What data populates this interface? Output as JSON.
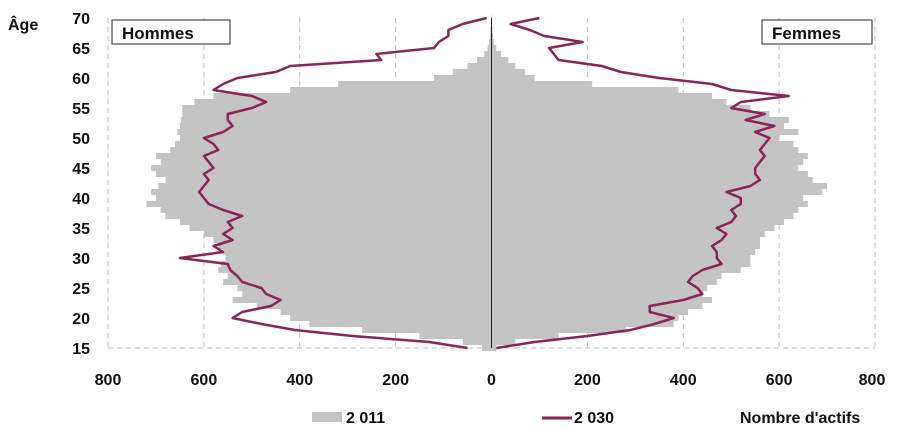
{
  "chart_data": {
    "type": "bar",
    "orientation": "horizontal",
    "subtype": "population-pyramid",
    "ylabel": "Âge",
    "xlabel": "Nombre d'actifs",
    "left_label": "Hommes",
    "right_label": "Femmes",
    "xlim": [
      -800,
      800
    ],
    "ylim": [
      15,
      70
    ],
    "x_ticks": [
      -800,
      -600,
      -400,
      -200,
      0,
      200,
      400,
      600,
      800
    ],
    "x_tick_labels": [
      "800",
      "600",
      "400",
      "200",
      "0",
      "200",
      "400",
      "600",
      "800"
    ],
    "y_ticks": [
      15,
      20,
      25,
      30,
      35,
      40,
      45,
      50,
      55,
      60,
      65,
      70
    ],
    "y_tick_labels": [
      "15",
      "20",
      "25",
      "30",
      "35",
      "40",
      "45",
      "50",
      "55",
      "60",
      "65",
      "70"
    ],
    "grid": "dashed vertical",
    "legend_position": "bottom",
    "ages": [
      15,
      16,
      17,
      18,
      19,
      20,
      21,
      22,
      23,
      24,
      25,
      26,
      27,
      28,
      29,
      30,
      31,
      32,
      33,
      34,
      35,
      36,
      37,
      38,
      39,
      40,
      41,
      42,
      43,
      44,
      45,
      46,
      47,
      48,
      49,
      50,
      51,
      52,
      53,
      54,
      55,
      56,
      57,
      58,
      59,
      60,
      61,
      62,
      63,
      64,
      65,
      66,
      67,
      68,
      69,
      70
    ],
    "series": [
      {
        "name": "2 011",
        "kind": "bar",
        "color": "#c4c4c4",
        "men": [
          20,
          60,
          150,
          270,
          380,
          420,
          440,
          490,
          540,
          520,
          530,
          560,
          550,
          570,
          565,
          555,
          560,
          570,
          580,
          600,
          630,
          650,
          680,
          690,
          720,
          700,
          710,
          695,
          680,
          700,
          710,
          690,
          700,
          670,
          660,
          650,
          655,
          650,
          648,
          645,
          645,
          620,
          580,
          420,
          320,
          120,
          80,
          50,
          30,
          15,
          8,
          5,
          3,
          2,
          1,
          1
        ],
        "women": [
          10,
          50,
          140,
          280,
          380,
          390,
          410,
          440,
          460,
          440,
          450,
          470,
          480,
          520,
          540,
          540,
          550,
          560,
          560,
          570,
          590,
          610,
          630,
          640,
          660,
          650,
          690,
          700,
          670,
          660,
          640,
          650,
          660,
          640,
          630,
          600,
          640,
          610,
          620,
          580,
          540,
          490,
          460,
          390,
          210,
          90,
          70,
          50,
          35,
          20,
          10,
          5,
          3,
          2,
          1,
          1
        ]
      },
      {
        "name": "2 030",
        "kind": "line",
        "color": "#8b2457",
        "men": [
          50,
          130,
          290,
          410,
          480,
          540,
          520,
          460,
          440,
          470,
          480,
          520,
          530,
          545,
          550,
          650,
          560,
          580,
          540,
          560,
          540,
          550,
          520,
          560,
          590,
          600,
          610,
          600,
          590,
          600,
          580,
          590,
          600,
          570,
          580,
          600,
          560,
          540,
          550,
          550,
          500,
          470,
          500,
          580,
          560,
          530,
          450,
          420,
          230,
          240,
          120,
          110,
          90,
          90,
          60,
          10
        ],
        "women": [
          10,
          90,
          200,
          290,
          340,
          380,
          330,
          330,
          400,
          440,
          430,
          410,
          420,
          440,
          480,
          470,
          470,
          460,
          480,
          490,
          470,
          500,
          510,
          500,
          520,
          520,
          490,
          540,
          560,
          550,
          550,
          560,
          570,
          560,
          570,
          580,
          550,
          590,
          530,
          570,
          500,
          520,
          620,
          500,
          460,
          350,
          270,
          230,
          140,
          130,
          120,
          190,
          110,
          80,
          40,
          100
        ]
      }
    ]
  }
}
